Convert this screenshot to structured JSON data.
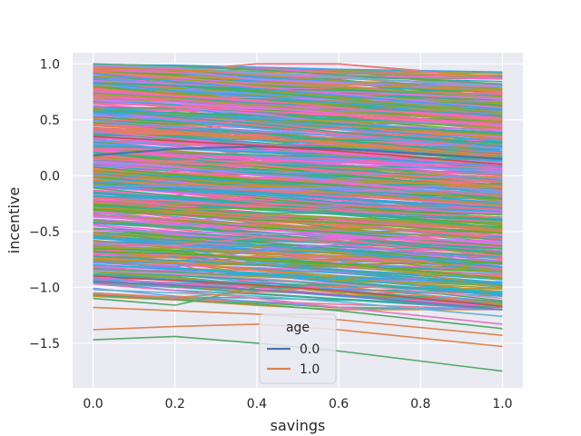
{
  "chart_data": {
    "type": "line",
    "xlabel": "savings",
    "ylabel": "incentive",
    "xlim": [
      -0.05,
      1.05
    ],
    "ylim": [
      -1.9,
      1.1
    ],
    "x_ticks": [
      {
        "value": 0.0,
        "label": "0.0"
      },
      {
        "value": 0.2,
        "label": "0.2"
      },
      {
        "value": 0.4,
        "label": "0.4"
      },
      {
        "value": 0.6,
        "label": "0.6"
      },
      {
        "value": 0.8,
        "label": "0.8"
      },
      {
        "value": 1.0,
        "label": "1.0"
      }
    ],
    "y_ticks": [
      {
        "value": 1.0,
        "label": "1.0"
      },
      {
        "value": 0.5,
        "label": "0.5"
      },
      {
        "value": 0.0,
        "label": "0.0"
      },
      {
        "value": -0.5,
        "label": "−0.5"
      },
      {
        "value": -1.0,
        "label": "−1.0"
      },
      {
        "value": -1.5,
        "label": "−1.5"
      }
    ],
    "grid": true,
    "background": "#eaeaf2",
    "x": [
      0.0,
      0.2,
      0.4,
      0.6,
      1.0
    ],
    "legend": {
      "title": "age",
      "placement": "lower center",
      "entries": [
        {
          "label": "0.0",
          "color": "#4c72b0"
        },
        {
          "label": "1.0",
          "color": "#dd8452"
        }
      ]
    },
    "palette": [
      "#4c72b0",
      "#dd8452",
      "#55a868",
      "#c44e52",
      "#8172b3",
      "#937860",
      "#da8bc3",
      "#8c8c8c",
      "#ccb974",
      "#64b5cd",
      "#e377c2",
      "#17becf",
      "#ff6ea0",
      "#a37cf0",
      "#36ada4",
      "#f0719f"
    ],
    "dense_band": {
      "line_count": 600,
      "start_range": [
        -1.1,
        1.0
      ],
      "end_slope_range": [
        -0.35,
        -0.05
      ],
      "colors": [
        "#f77189",
        "#e8747c",
        "#d58c32",
        "#a39c32",
        "#50b131",
        "#36ada4",
        "#38a8c5",
        "#6e9bf4",
        "#cc7af4",
        "#f565cc",
        "#3ba3ec",
        "#97a431",
        "#34af8a",
        "#f068d4"
      ]
    },
    "series": [
      {
        "values": [
          0.18,
          0.24,
          0.26,
          0.24,
          0.15
        ],
        "color": "#4c72b0"
      },
      {
        "values": [
          1.0,
          0.98,
          0.95,
          0.9,
          0.82
        ],
        "color": "#55a868"
      },
      {
        "values": [
          0.99,
          0.97,
          0.92,
          0.88,
          0.8
        ],
        "color": "#64b5cd"
      },
      {
        "values": [
          -1.47,
          -1.44,
          -1.5,
          -1.57,
          -1.75
        ],
        "color": "#55a868"
      },
      {
        "values": [
          -1.38,
          -1.35,
          -1.33,
          -1.38,
          -1.53
        ],
        "color": "#dd8452"
      },
      {
        "values": [
          -1.18,
          -1.21,
          -1.24,
          -1.29,
          -1.43
        ],
        "color": "#dd8452"
      },
      {
        "values": [
          -1.07,
          -1.11,
          -1.15,
          -1.21,
          -1.37
        ],
        "color": "#55a868"
      },
      {
        "values": [
          -1.1,
          -1.16,
          -1.0,
          -0.96,
          -1.12
        ],
        "color": "#55a868"
      },
      {
        "values": [
          -0.97,
          -1.03,
          -1.1,
          -1.18,
          -1.33
        ],
        "color": "#e377c2"
      },
      {
        "values": [
          -1.02,
          -1.05,
          -1.08,
          -1.13,
          -1.26
        ],
        "color": "#64b5cd"
      },
      {
        "values": [
          -1.05,
          -1.09,
          -1.04,
          -0.99,
          -1.15
        ],
        "color": "#dd8452"
      },
      {
        "values": [
          -0.95,
          -0.98,
          -1.02,
          -1.07,
          -1.2
        ],
        "color": "#8172b3"
      },
      {
        "values": [
          -0.9,
          -0.94,
          -0.98,
          -1.03,
          -1.17
        ],
        "color": "#c44e52"
      },
      {
        "values": [
          -0.85,
          -0.88,
          -0.92,
          -0.97,
          -1.1
        ],
        "color": "#da8bc3"
      },
      {
        "values": [
          -0.8,
          -0.83,
          -0.87,
          -0.92,
          -1.05
        ],
        "color": "#17becf"
      },
      {
        "values": [
          -0.78,
          -0.82,
          -0.66,
          -0.62,
          -0.77
        ],
        "color": "#a37cf0"
      },
      {
        "values": [
          -0.72,
          -0.76,
          -0.8,
          -0.85,
          -0.98
        ],
        "color": "#36ada4"
      },
      {
        "values": [
          -0.68,
          -0.7,
          -0.74,
          -0.79,
          -0.92
        ],
        "color": "#50b131"
      },
      {
        "values": [
          -0.6,
          -0.63,
          -0.55,
          -0.58,
          -0.72
        ],
        "color": "#f0719f"
      },
      {
        "values": [
          -0.55,
          -0.58,
          -0.62,
          -0.67,
          -0.82
        ],
        "color": "#38a8c5"
      },
      {
        "values": [
          0.65,
          0.62,
          0.58,
          0.54,
          0.44
        ],
        "color": "#ff6ea0"
      },
      {
        "values": [
          0.4,
          0.37,
          0.33,
          0.29,
          0.18
        ],
        "color": "#dd8452"
      },
      {
        "values": [
          0.35,
          0.31,
          0.27,
          0.22,
          0.1
        ],
        "color": "#c44e52"
      }
    ]
  }
}
